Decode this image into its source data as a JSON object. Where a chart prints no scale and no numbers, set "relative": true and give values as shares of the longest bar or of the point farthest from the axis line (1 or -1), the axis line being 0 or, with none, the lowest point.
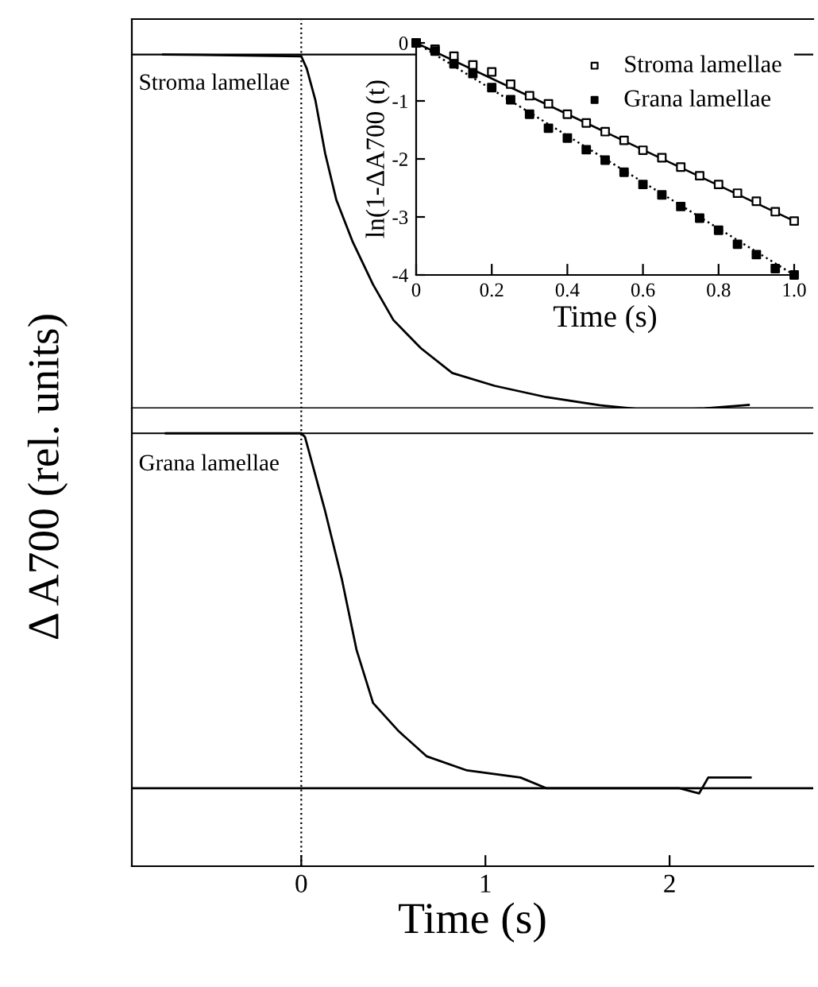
{
  "chart_data": [
    {
      "type": "line",
      "relative": true,
      "ylabel": "Δ A700 (rel. units)",
      "xlim": [
        -0.92,
        2.78
      ],
      "xticks": [
        0,
        1,
        2
      ],
      "tick_labels": false,
      "grid": false,
      "legend": false,
      "annotations": [
        "Stroma lamellae"
      ],
      "ref_lines": [
        {
          "axis": "y",
          "value": 1,
          "color": "#000000",
          "line_style": "solid"
        },
        {
          "axis": "x",
          "value": 0,
          "color": "#000000",
          "line_style": "dotted"
        }
      ],
      "series": [
        {
          "color": "#000000",
          "x": [
            -0.75,
            0,
            0.03,
            0.077,
            0.13,
            0.19,
            0.28,
            0.39,
            0.5,
            0.65,
            0.82,
            1.05,
            1.33,
            1.62,
            1.9,
            2.19,
            2.43
          ],
          "values": [
            1.0,
            0.995,
            0.96,
            0.87,
            0.72,
            0.59,
            0.47,
            0.35,
            0.25,
            0.17,
            0.1,
            0.064,
            0.032,
            0.009,
            -0.005,
            0,
            0.01
          ]
        }
      ]
    },
    {
      "type": "line",
      "relative": true,
      "xlabel": "Time (s)",
      "xlim": [
        -0.92,
        2.78
      ],
      "xticks": [
        0,
        1,
        2
      ],
      "tick_labels": "x",
      "grid": false,
      "legend": false,
      "annotations": [
        "Grana lamellae"
      ],
      "ref_lines": [
        {
          "axis": "y",
          "value": 1,
          "color": "#000000",
          "line_style": "solid"
        },
        {
          "axis": "x",
          "value": 0,
          "color": "#000000",
          "line_style": "dotted"
        }
      ],
      "series": [
        {
          "color": "#000000",
          "x": [
            -0.735,
            0,
            0.02,
            0.13,
            0.22,
            0.3,
            0.39,
            0.53,
            0.68,
            0.9,
            1.19,
            1.33,
            1.62,
            2.05,
            2.16,
            2.21,
            2.44
          ],
          "values": [
            1.0,
            1.0,
            0.99,
            0.78,
            0.59,
            0.39,
            0.24,
            0.16,
            0.09,
            0.05,
            0.03,
            0,
            0,
            0,
            -0.015,
            0.03,
            0.03
          ]
        }
      ]
    },
    {
      "type": "scatter",
      "xlabel": "Time (s)",
      "ylabel": "ln(1-ΔA700 (t)",
      "xlim": [
        0,
        1
      ],
      "ylim": [
        -4,
        0
      ],
      "xticks": [
        0,
        0.2,
        0.4,
        0.6,
        0.8,
        {
          "value": 1,
          "label": "1.0"
        }
      ],
      "yticks": [
        0,
        -1,
        -2,
        -3,
        -4
      ],
      "grid": false,
      "legend": "top right",
      "marker": "square",
      "x": [
        0,
        0.05,
        0.1,
        0.15,
        0.2,
        0.25,
        0.3,
        0.35,
        0.4,
        0.45,
        0.5,
        0.55,
        0.6,
        0.65,
        0.7,
        0.75,
        0.8,
        0.85,
        0.9,
        0.95,
        1.0
      ],
      "series": [
        {
          "name": "Stroma lamellae",
          "color": "#ffffff",
          "values": [
            0,
            -0.11,
            -0.23,
            -0.38,
            -0.5,
            -0.71,
            -0.91,
            -1.05,
            -1.23,
            -1.38,
            -1.53,
            -1.68,
            -1.85,
            -1.98,
            -2.14,
            -2.29,
            -2.44,
            -2.59,
            -2.73,
            -2.91,
            -3.07
          ]
        },
        {
          "name": "Grana lamellae",
          "color": "#000000",
          "values": [
            0,
            -0.14,
            -0.36,
            -0.53,
            -0.77,
            -0.98,
            -1.23,
            -1.47,
            -1.64,
            -1.84,
            -2.02,
            -2.23,
            -2.44,
            -2.62,
            -2.82,
            -3.02,
            -3.23,
            -3.47,
            -3.65,
            -3.89,
            -4.0
          ]
        },
        {
          "type": "line",
          "marker": "none",
          "color": "#000000",
          "line_style": "solid",
          "x": [
            0,
            1.0
          ],
          "values": [
            0,
            -3.07
          ]
        },
        {
          "type": "line",
          "marker": "none",
          "color": "#000000",
          "line_style": "dotted",
          "x": [
            0,
            1.0
          ],
          "values": [
            0,
            -4.0
          ]
        }
      ]
    }
  ]
}
